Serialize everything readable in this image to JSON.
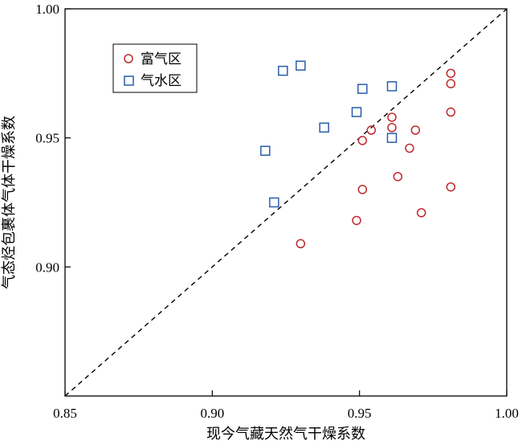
{
  "chart_data": {
    "type": "scatter",
    "xlabel": "现今气藏天然气干燥系数",
    "ylabel": "气态烃包裹体气体干燥系数",
    "xlim": [
      0.85,
      1.0
    ],
    "ylim": [
      0.85,
      1.0
    ],
    "x_ticks": [
      "0.85",
      "0.90",
      "0.95",
      "1.00"
    ],
    "y_ticks": [
      "0.90",
      "0.95",
      "1.00"
    ],
    "reference_line": "y = x",
    "legend_position": "top-left",
    "series": [
      {
        "name": "富气区",
        "marker": "circle",
        "color": "#c0282d",
        "points": [
          [
            0.93,
            0.909
          ],
          [
            0.949,
            0.918
          ],
          [
            0.951,
            0.93
          ],
          [
            0.951,
            0.949
          ],
          [
            0.954,
            0.953
          ],
          [
            0.961,
            0.954
          ],
          [
            0.961,
            0.958
          ],
          [
            0.963,
            0.935
          ],
          [
            0.967,
            0.946
          ],
          [
            0.969,
            0.953
          ],
          [
            0.971,
            0.921
          ],
          [
            0.981,
            0.931
          ],
          [
            0.981,
            0.96
          ],
          [
            0.981,
            0.971
          ],
          [
            0.981,
            0.975
          ]
        ]
      },
      {
        "name": "气水区",
        "marker": "square",
        "color": "#2a5caa",
        "points": [
          [
            0.918,
            0.945
          ],
          [
            0.921,
            0.925
          ],
          [
            0.924,
            0.976
          ],
          [
            0.93,
            0.978
          ],
          [
            0.938,
            0.954
          ],
          [
            0.949,
            0.96
          ],
          [
            0.951,
            0.969
          ],
          [
            0.961,
            0.95
          ],
          [
            0.961,
            0.97
          ]
        ]
      }
    ]
  }
}
